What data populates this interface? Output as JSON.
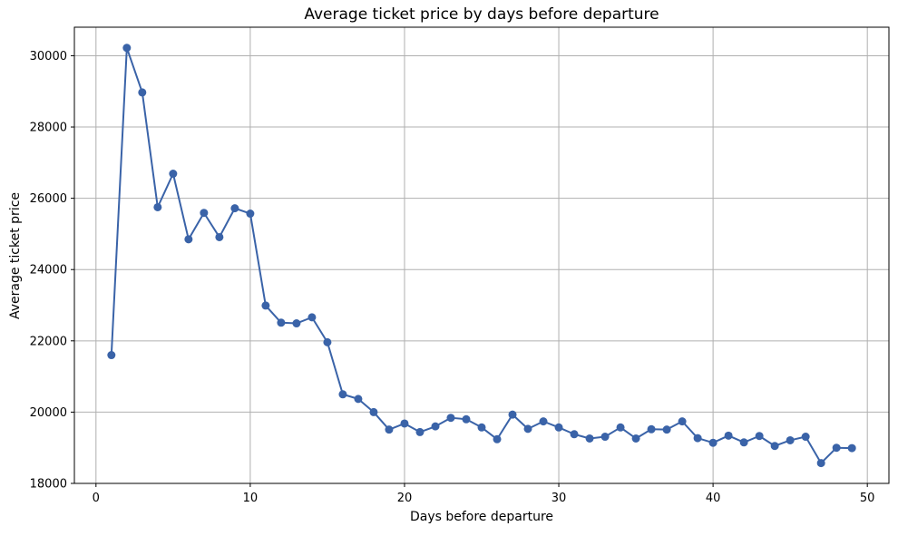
{
  "chart_data": {
    "type": "line",
    "title": "Average ticket price by days before departure",
    "xlabel": "Days before departure",
    "ylabel": "Average ticket price",
    "xlim": [
      -1.4,
      51.4
    ],
    "ylim": [
      18000,
      30800
    ],
    "grid": true,
    "legend": "none",
    "line_color": "#3a63a8",
    "x_ticks": [
      {
        "value": 0,
        "label": "0"
      },
      {
        "value": 10,
        "label": "10"
      },
      {
        "value": 20,
        "label": "20"
      },
      {
        "value": 30,
        "label": "30"
      },
      {
        "value": 40,
        "label": "40"
      },
      {
        "value": 50,
        "label": "50"
      }
    ],
    "y_ticks": [
      {
        "value": 18000,
        "label": "18000"
      },
      {
        "value": 20000,
        "label": "20000"
      },
      {
        "value": 22000,
        "label": "22000"
      },
      {
        "value": 24000,
        "label": "24000"
      },
      {
        "value": 26000,
        "label": "26000"
      },
      {
        "value": 28000,
        "label": "28000"
      },
      {
        "value": 30000,
        "label": "30000"
      }
    ],
    "series": [
      {
        "x": [
          1,
          2,
          3,
          4,
          5,
          6,
          7,
          8,
          9,
          10,
          11,
          12,
          13,
          14,
          15,
          16,
          17,
          18,
          19,
          20,
          21,
          22,
          23,
          24,
          25,
          26,
          27,
          28,
          29,
          30,
          31,
          32,
          33,
          34,
          35,
          36,
          37,
          38,
          39,
          40,
          41,
          42,
          43,
          44,
          45,
          46,
          47,
          48,
          49
        ],
        "values": [
          21600,
          30220,
          28970,
          25750,
          26690,
          24850,
          25590,
          24910,
          25720,
          25570,
          22990,
          22510,
          22490,
          22660,
          21960,
          20500,
          20370,
          20000,
          19510,
          19680,
          19440,
          19600,
          19840,
          19800,
          19570,
          19240,
          19930,
          19530,
          19740,
          19570,
          19380,
          19260,
          19310,
          19570,
          19260,
          19520,
          19510,
          19740,
          19270,
          19140,
          19340,
          19150,
          19330,
          19050,
          19210,
          19310,
          18570,
          19000,
          18990
        ]
      }
    ]
  }
}
